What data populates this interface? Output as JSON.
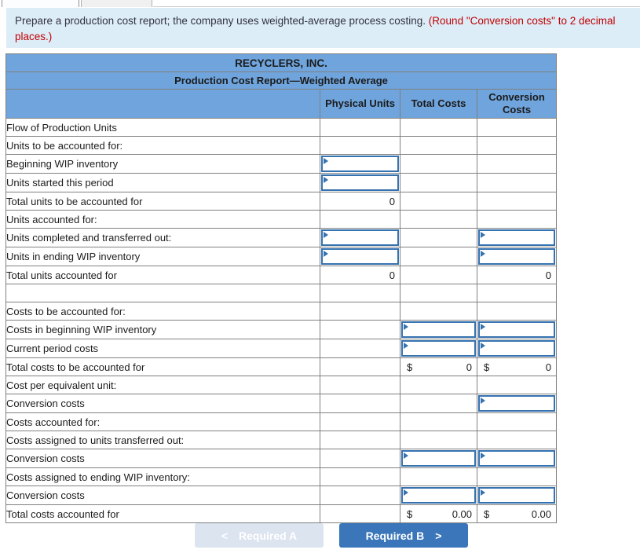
{
  "instruction": {
    "text_main": "Prepare a production cost report; the company uses weighted-average process costing. ",
    "text_emphasis": "(Round \"Conversion costs\" to 2 decimal places.)"
  },
  "report": {
    "title": "RECYCLERS, INC.",
    "subtitle": "Production Cost Report—Weighted Average",
    "columns": {
      "physical_units": "Physical Units",
      "total_costs": "Total Costs",
      "conversion_costs": "Conversion Costs"
    },
    "rows": [
      {
        "label": "Flow of Production Units"
      },
      {
        "label": "Units to be accounted for:"
      },
      {
        "label": "Beginning WIP inventory"
      },
      {
        "label": "Units started this period"
      },
      {
        "label": "Total units to be accounted for",
        "pu_value": "0"
      },
      {
        "label": "Units accounted for:"
      },
      {
        "label": "Units completed and transferred out:"
      },
      {
        "label": "Units in ending WIP inventory"
      },
      {
        "label": "Total units accounted for",
        "pu_value": "0",
        "cc_value": "0"
      },
      {
        "label": ""
      },
      {
        "label": "Costs to be accounted for:"
      },
      {
        "label": "Costs in beginning WIP inventory"
      },
      {
        "label": "Current period costs"
      },
      {
        "label": "Total costs to be accounted for",
        "tc_prefix": "$",
        "tc_value": "0",
        "cc_prefix": "$",
        "cc_value": "0"
      },
      {
        "label": "Cost per equivalent unit:"
      },
      {
        "label": "Conversion costs"
      },
      {
        "label": "Costs accounted for:"
      },
      {
        "label": "Costs assigned to units transferred out:"
      },
      {
        "label": "Conversion costs"
      },
      {
        "label": "Costs assigned to ending WIP inventory:"
      },
      {
        "label": "Conversion costs"
      },
      {
        "label": "Total costs accounted for",
        "tc_prefix": "$",
        "tc_value": "0.00",
        "cc_prefix": "$",
        "cc_value": "0.00"
      }
    ]
  },
  "buttons": {
    "prev_label": "Required A",
    "prev_chevron": "<",
    "next_label": "Required B",
    "next_chevron": ">"
  },
  "colors": {
    "header_blue": "#6fa4dc",
    "input_border_blue": "#3572b0",
    "instruction_bg": "#ddedf8",
    "emphasis_red": "#c00000",
    "button_primary": "#3a76b9",
    "button_disabled": "#dce4f0"
  }
}
